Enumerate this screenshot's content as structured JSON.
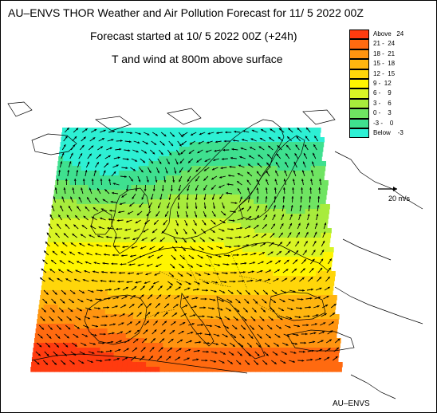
{
  "title": "AU–ENVS THOR Weather and Air Pollution Forecast for 11/ 5 2022  00Z",
  "subtitle1": "Forecast started at 10/ 5 2022  00Z (+24h)",
  "subtitle2": "T and wind at 800m above surface",
  "legend": [
    {
      "label": "Above   24",
      "color": "#ff3b0f"
    },
    {
      "label": "21 -  24",
      "color": "#ff6a10"
    },
    {
      "label": "18 -  21",
      "color": "#ff9410"
    },
    {
      "label": "15 -  18",
      "color": "#ffb50f"
    },
    {
      "label": "12 -  15",
      "color": "#ffd60a"
    },
    {
      "label": "9 -  12",
      "color": "#fff500"
    },
    {
      "label": "6 -    9",
      "color": "#d9f525"
    },
    {
      "label": "3 -    6",
      "color": "#a8ec3c"
    },
    {
      "label": "0 -    3",
      "color": "#6fe462"
    },
    {
      "label": "-3 -    0",
      "color": "#3fe08f"
    },
    {
      "label": "Below    -3",
      "color": "#2df0d4"
    }
  ],
  "scale_label": "20 m/s",
  "footer": "AU–ENVS",
  "colors": {
    "coast": "#000000",
    "arrow": "#000000"
  }
}
